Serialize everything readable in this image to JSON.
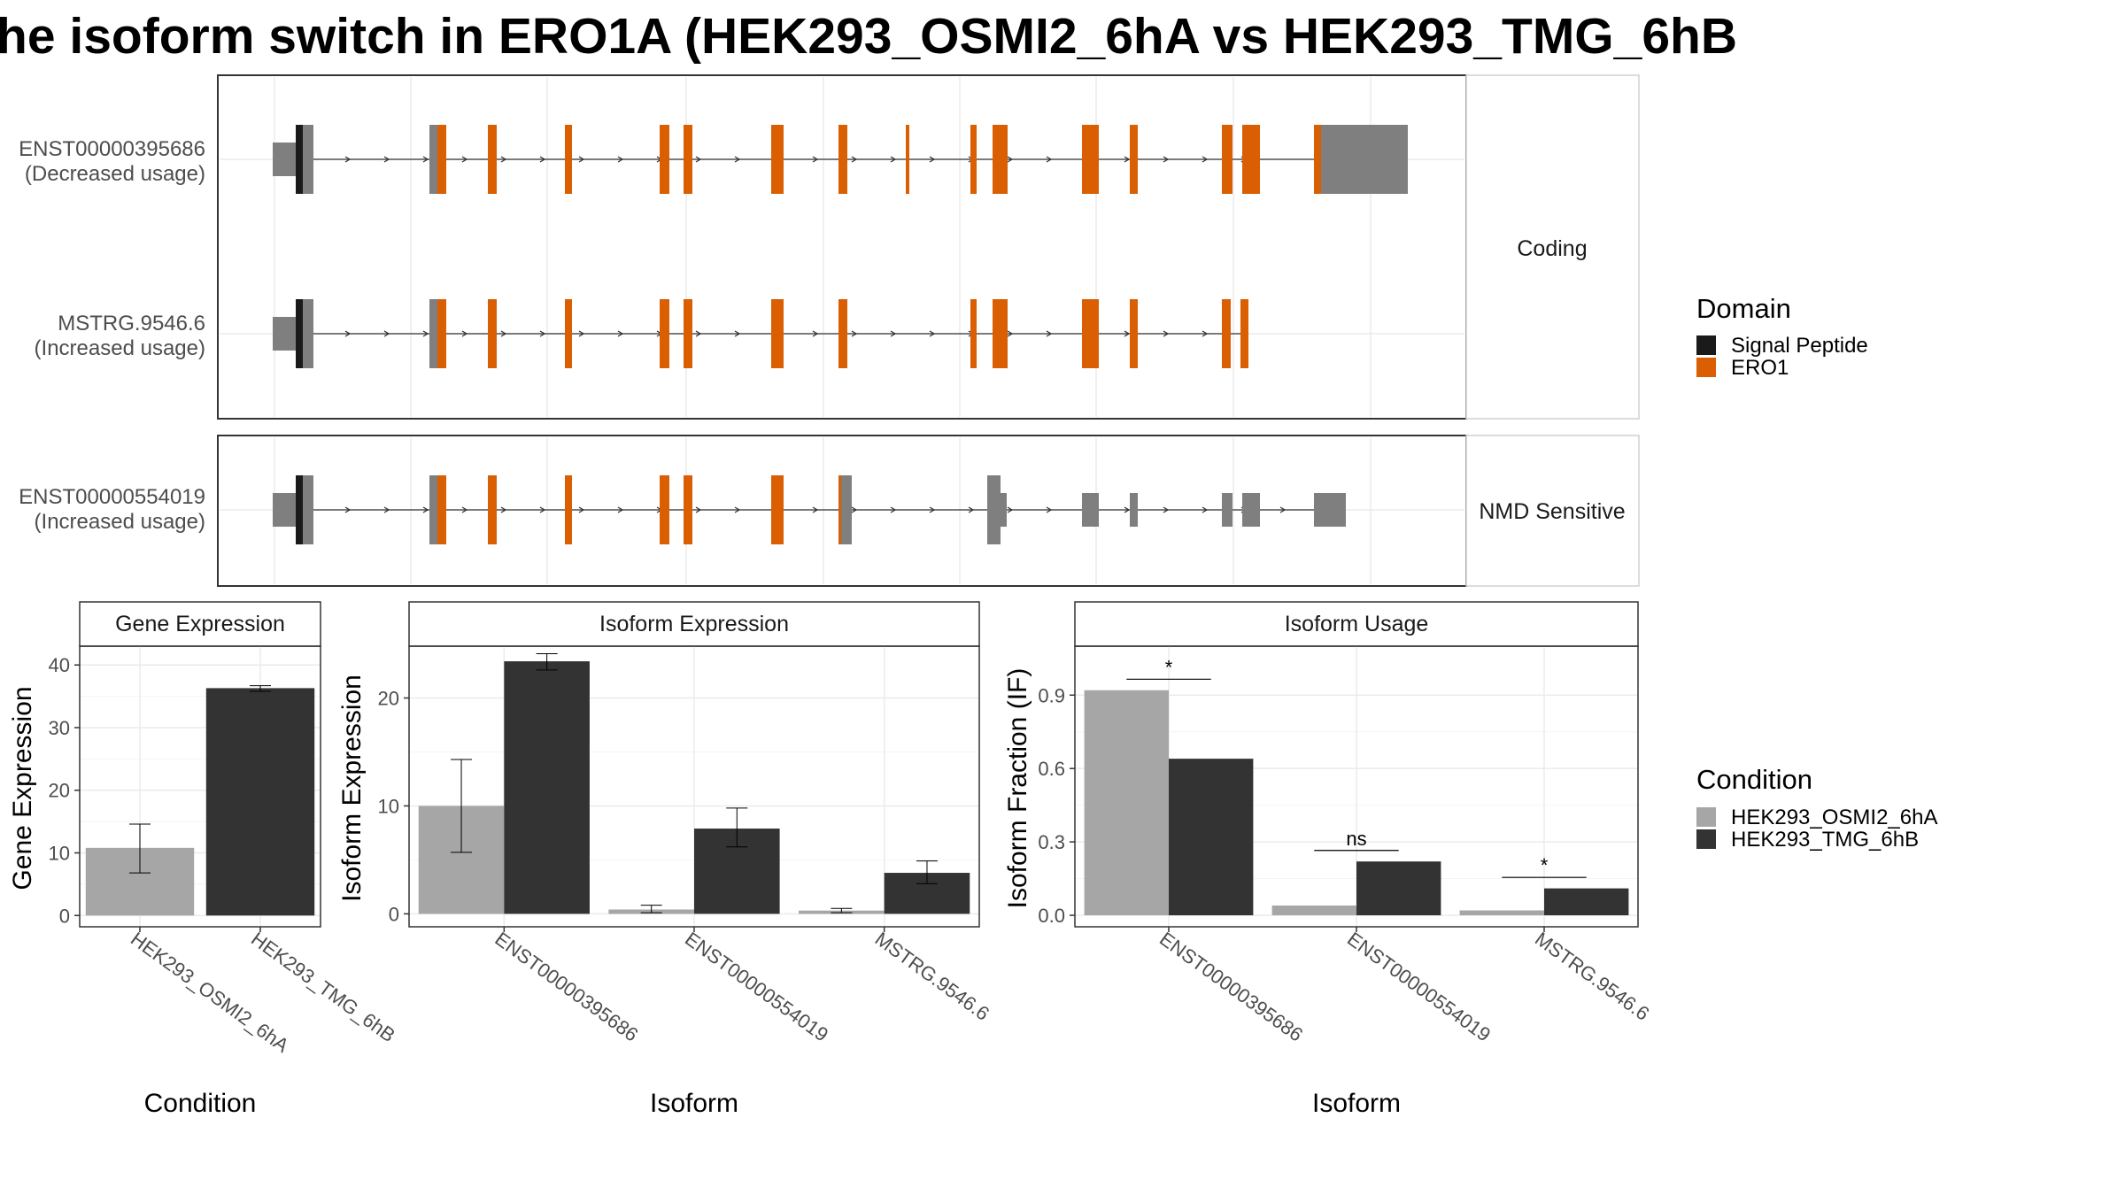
{
  "title": "he isoform switch in ERO1A (HEK293_OSMI2_6hA vs HEK293_TMG_6hB",
  "transcript_panel": {
    "isoforms": [
      {
        "id": "ENST00000395686",
        "usage": "(Decreased usage)",
        "group": "Coding"
      },
      {
        "id": "MSTRG.9546.6",
        "usage": "(Increased usage)",
        "group": "Coding"
      },
      {
        "id": "ENST00000554019",
        "usage": "(Increased usage)",
        "group": "NMD Sensitive"
      }
    ],
    "strips": [
      "Coding",
      "NMD Sensitive"
    ]
  },
  "domain_legend": {
    "title": "Domain",
    "items": [
      {
        "label": "Signal Peptide",
        "color": "#1a1a1a"
      },
      {
        "label": "ERO1",
        "color": "#d95f02"
      }
    ]
  },
  "condition_legend": {
    "title": "Condition",
    "items": [
      {
        "label": "HEK293_OSMI2_6hA",
        "color": "#a6a6a6"
      },
      {
        "label": "HEK293_TMG_6hB",
        "color": "#333333"
      }
    ]
  },
  "colors": {
    "cond_a": "#a6a6a6",
    "cond_b": "#333333",
    "utr": "#7f7f7f",
    "domain_ero1": "#d95f02",
    "domain_sp": "#1a1a1a"
  },
  "chart_data": [
    {
      "type": "bar",
      "strip": "Gene Expression",
      "xlabel": "Condition",
      "ylabel": "Gene Expression",
      "categories": [
        "HEK293_OSMI2_6hA",
        "HEK293_TMG_6hB"
      ],
      "values": [
        10.8,
        36.3
      ],
      "errors": [
        [
          6.8,
          14.6
        ],
        [
          35.8,
          36.7
        ]
      ],
      "yticks": [
        0,
        10,
        20,
        30,
        40
      ],
      "ylim": [
        -1.8,
        43
      ]
    },
    {
      "type": "bar",
      "strip": "Isoform Expression",
      "xlabel": "Isoform",
      "ylabel": "Isoform Expression",
      "categories": [
        "ENST00000395686",
        "ENST00000554019",
        "MSTRG.9546.6"
      ],
      "series": [
        {
          "values": [
            10.0,
            0.4,
            0.3
          ],
          "errors": [
            [
              5.7,
              14.3
            ],
            [
              0.1,
              0.8
            ],
            [
              0.1,
              0.5
            ]
          ]
        },
        {
          "values": [
            23.4,
            7.9,
            3.8
          ],
          "errors": [
            [
              22.6,
              24.1
            ],
            [
              6.2,
              9.8
            ],
            [
              2.8,
              4.9
            ]
          ]
        }
      ],
      "yticks": [
        0,
        10,
        20
      ],
      "ylim": [
        -1.2,
        24.8
      ]
    },
    {
      "type": "bar",
      "strip": "Isoform Usage",
      "xlabel": "Isoform",
      "ylabel": "Isoform Fraction (IF)",
      "categories": [
        "ENST00000395686",
        "ENST00000554019",
        "MSTRG.9546.6"
      ],
      "series": [
        {
          "values": [
            0.92,
            0.04,
            0.02
          ]
        },
        {
          "values": [
            0.64,
            0.22,
            0.11
          ]
        }
      ],
      "significance": [
        "*",
        "ns",
        "*"
      ],
      "sig_heights": [
        0.965,
        0.265,
        0.155
      ],
      "yticks": [
        0.0,
        0.3,
        0.6,
        0.9
      ],
      "ylim": [
        -0.047,
        1.1
      ]
    }
  ]
}
